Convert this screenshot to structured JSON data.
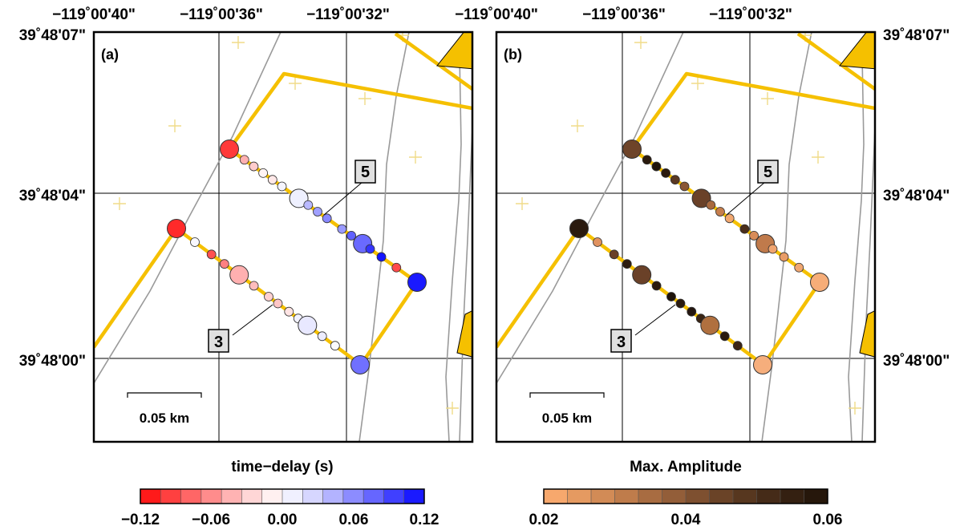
{
  "panels": [
    {
      "label": "(a)",
      "top_lon_labels": [
        "−119˚00'40\"",
        "−119˚00'36\"",
        "−119˚00'32\""
      ],
      "left_lat_labels": [
        "39˚48'07\"",
        "39˚48'04\"",
        "39˚48'00\""
      ],
      "right_lat_labels": [],
      "scale_label": "0.05 km",
      "boxes": [
        {
          "text": "5"
        },
        {
          "text": "3"
        }
      ],
      "colorbar": {
        "title": "time−delay (s)",
        "ticks": [
          "−0.12",
          "−0.06",
          "0.00",
          "0.06",
          "0.12"
        ],
        "colors": [
          "#ff1a1a",
          "#ff4040",
          "#ff6666",
          "#ff8c8c",
          "#ffb3b3",
          "#ffd6d6",
          "#fff0f0",
          "#f0f0ff",
          "#d6d6ff",
          "#b3b3ff",
          "#8c8cff",
          "#6666ff",
          "#4040ff",
          "#1a1aff"
        ]
      },
      "stations": [
        {
          "line": "north",
          "t": 0.0,
          "color": "#ff3a3a",
          "big": true
        },
        {
          "line": "north",
          "t": 0.08,
          "color": "#ffb0b0",
          "big": false
        },
        {
          "line": "north",
          "t": 0.13,
          "color": "#ffcccc",
          "big": false
        },
        {
          "line": "north",
          "t": 0.18,
          "color": "#fff4f4",
          "big": false
        },
        {
          "line": "north",
          "t": 0.23,
          "color": "#ffe8e8",
          "big": false
        },
        {
          "line": "north",
          "t": 0.28,
          "color": "#f4f4ff",
          "big": false
        },
        {
          "line": "north",
          "t": 0.37,
          "color": "#eef0ff",
          "big": true
        },
        {
          "line": "north",
          "t": 0.42,
          "color": "#b8b8ff",
          "big": false
        },
        {
          "line": "north",
          "t": 0.47,
          "color": "#a0a0ff",
          "big": false
        },
        {
          "line": "north",
          "t": 0.52,
          "color": "#8888ff",
          "big": false
        },
        {
          "line": "north",
          "t": 0.6,
          "color": "#9a9aff",
          "big": false
        },
        {
          "line": "north",
          "t": 0.65,
          "color": "#6060ff",
          "big": false
        },
        {
          "line": "north",
          "t": 0.71,
          "color": "#6a6aff",
          "big": true
        },
        {
          "line": "north",
          "t": 0.75,
          "color": "#3333ff",
          "big": false
        },
        {
          "line": "north",
          "t": 0.81,
          "color": "#1414ff",
          "big": false
        },
        {
          "line": "north",
          "t": 0.89,
          "color": "#ff4a4a",
          "big": false
        },
        {
          "line": "north",
          "t": 1.0,
          "color": "#1a1aff",
          "big": true
        },
        {
          "line": "south",
          "t": 0.0,
          "color": "#ff2a2a",
          "big": true
        },
        {
          "line": "south",
          "t": 0.1,
          "color": "#f8f8ff",
          "big": false
        },
        {
          "line": "south",
          "t": 0.19,
          "color": "#ff5050",
          "big": false
        },
        {
          "line": "south",
          "t": 0.26,
          "color": "#ff8080",
          "big": false
        },
        {
          "line": "south",
          "t": 0.34,
          "color": "#ffb0b0",
          "big": true
        },
        {
          "line": "south",
          "t": 0.42,
          "color": "#ffbcbc",
          "big": false
        },
        {
          "line": "south",
          "t": 0.5,
          "color": "#ffd0d0",
          "big": false
        },
        {
          "line": "south",
          "t": 0.55,
          "color": "#ffc6c6",
          "big": false
        },
        {
          "line": "south",
          "t": 0.61,
          "color": "#ffe4e4",
          "big": false
        },
        {
          "line": "south",
          "t": 0.66,
          "color": "#f2f2ff",
          "big": false
        },
        {
          "line": "south",
          "t": 0.71,
          "color": "#e8e8ff",
          "big": true
        },
        {
          "line": "south",
          "t": 0.79,
          "color": "#ececff",
          "big": false
        },
        {
          "line": "south",
          "t": 0.86,
          "color": "#fbfbff",
          "big": false
        },
        {
          "line": "corner",
          "t": 0,
          "color": "#7070ff",
          "big": true
        }
      ]
    },
    {
      "label": "(b)",
      "top_lon_labels": [
        "−119˚00'40\"",
        "−119˚00'36\"",
        "−119˚00'32\""
      ],
      "left_lat_labels": [],
      "right_lat_labels": [
        "39˚48'07\"",
        "39˚48'04\"",
        "39˚48'00\""
      ],
      "scale_label": "0.05 km",
      "boxes": [
        {
          "text": "5"
        },
        {
          "text": "3"
        }
      ],
      "colorbar": {
        "title": "Max. Amplitude",
        "ticks": [
          "0.02",
          "0.04",
          "0.06"
        ],
        "colors": [
          "#f7a86d",
          "#e59a61",
          "#d28b56",
          "#bf7c4b",
          "#a86c41",
          "#935e39",
          "#7e5030",
          "#6a4327",
          "#57371f",
          "#452b18",
          "#342011",
          "#26170b"
        ]
      },
      "stations": [
        {
          "line": "north",
          "t": 0.0,
          "color": "#6e4429",
          "big": true
        },
        {
          "line": "north",
          "t": 0.08,
          "color": "#2a1a0e",
          "big": false
        },
        {
          "line": "north",
          "t": 0.13,
          "color": "#21150b",
          "big": false
        },
        {
          "line": "north",
          "t": 0.18,
          "color": "#2a1a0e",
          "big": false
        },
        {
          "line": "north",
          "t": 0.23,
          "color": "#5a3822",
          "big": false
        },
        {
          "line": "north",
          "t": 0.28,
          "color": "#8a5634",
          "big": false
        },
        {
          "line": "north",
          "t": 0.37,
          "color": "#6a4128",
          "big": true
        },
        {
          "line": "north",
          "t": 0.42,
          "color": "#a8693f",
          "big": false
        },
        {
          "line": "north",
          "t": 0.47,
          "color": "#c67e4d",
          "big": false
        },
        {
          "line": "north",
          "t": 0.52,
          "color": "#f2a870",
          "big": false
        },
        {
          "line": "north",
          "t": 0.6,
          "color": "#4a2e1b",
          "big": false
        },
        {
          "line": "north",
          "t": 0.65,
          "color": "#d88c58",
          "big": false
        },
        {
          "line": "north",
          "t": 0.71,
          "color": "#c07a4b",
          "big": true
        },
        {
          "line": "north",
          "t": 0.75,
          "color": "#f0a470",
          "big": false
        },
        {
          "line": "north",
          "t": 0.81,
          "color": "#e89c66",
          "big": false
        },
        {
          "line": "north",
          "t": 0.89,
          "color": "#f0a670",
          "big": false
        },
        {
          "line": "north",
          "t": 1.0,
          "color": "#f6ad78",
          "big": true
        },
        {
          "line": "south",
          "t": 0.0,
          "color": "#2a1a0e",
          "big": true
        },
        {
          "line": "south",
          "t": 0.1,
          "color": "#e09260",
          "big": false
        },
        {
          "line": "south",
          "t": 0.19,
          "color": "#6a4128",
          "big": false
        },
        {
          "line": "south",
          "t": 0.26,
          "color": "#2d1c10",
          "big": false
        },
        {
          "line": "south",
          "t": 0.34,
          "color": "#6a4128",
          "big": true
        },
        {
          "line": "south",
          "t": 0.42,
          "color": "#2a1a0e",
          "big": false
        },
        {
          "line": "south",
          "t": 0.5,
          "color": "#1e130a",
          "big": false
        },
        {
          "line": "south",
          "t": 0.55,
          "color": "#2a1a0e",
          "big": false
        },
        {
          "line": "south",
          "t": 0.61,
          "color": "#241610",
          "big": false
        },
        {
          "line": "south",
          "t": 0.66,
          "color": "#3a2414",
          "big": false
        },
        {
          "line": "south",
          "t": 0.71,
          "color": "#b0703f",
          "big": true
        },
        {
          "line": "south",
          "t": 0.79,
          "color": "#2a1a0e",
          "big": false
        },
        {
          "line": "south",
          "t": 0.86,
          "color": "#3d2616",
          "big": false
        },
        {
          "line": "corner",
          "t": 0,
          "color": "#f6ae7c",
          "big": true
        }
      ]
    }
  ],
  "colors": {
    "road": "#f5c000",
    "faint_line": "#999999",
    "cross": "#f0dc88",
    "frame": "#000000"
  }
}
